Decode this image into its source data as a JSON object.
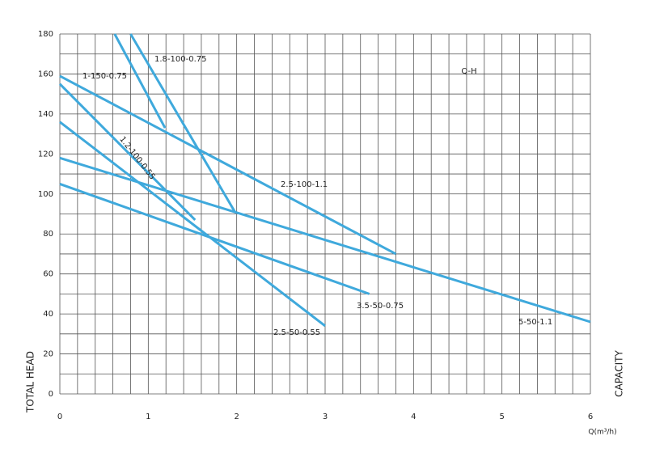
{
  "chart_data": {
    "type": "line",
    "annotation": "Q-H",
    "x_label": "Q(m³/h)",
    "y_label": "TOTAL HEAD",
    "y2_label": "CAPACITY",
    "color": "#3fa9dc",
    "xlim": [
      0,
      6
    ],
    "ylim": [
      0,
      180
    ],
    "xticks": [
      0,
      1,
      2,
      3,
      4,
      5,
      6
    ],
    "yticks": [
      0,
      20,
      40,
      60,
      80,
      100,
      120,
      140,
      160,
      180
    ],
    "grid": true,
    "series": [
      {
        "name": "1.8-100-0.75",
        "x": [
          0.8,
          1.98
        ],
        "values": [
          180,
          91
        ]
      },
      {
        "name": "1-150-0.75",
        "x": [
          0.62,
          1.19
        ],
        "values": [
          180,
          133
        ]
      },
      {
        "name": "1.2-100-0.55",
        "x": [
          0,
          1.53
        ],
        "values": [
          155,
          87
        ]
      },
      {
        "name": "2.5-100-1.1",
        "x": [
          0,
          3.8
        ],
        "values": [
          159,
          70
        ]
      },
      {
        "name": "3.5-50-0.75",
        "x": [
          0,
          3.5
        ],
        "values": [
          105,
          50
        ]
      },
      {
        "name": "2.5-50-0.55",
        "x": [
          0,
          3.0
        ],
        "values": [
          136,
          34
        ]
      },
      {
        "name": "5-50-1.1",
        "x": [
          0,
          6
        ],
        "values": [
          118,
          36
        ]
      }
    ]
  }
}
